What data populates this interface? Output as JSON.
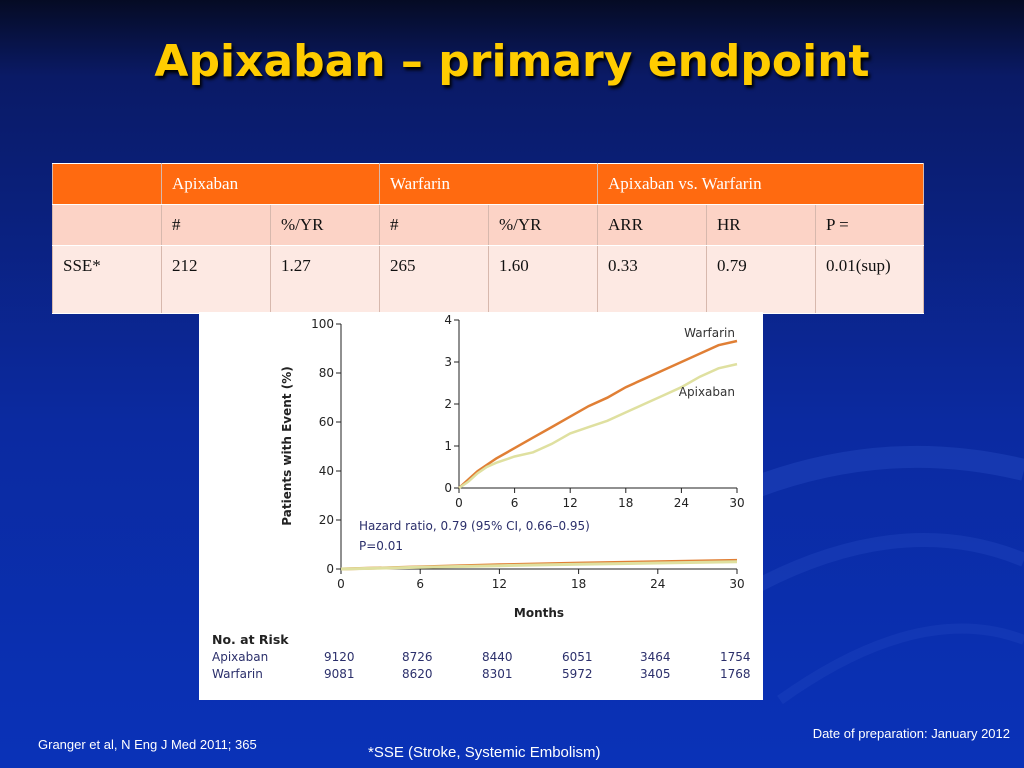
{
  "slide": {
    "title": "Apixaban – primary endpoint",
    "footer_left": "Granger et al, N Eng J Med 2011; 365",
    "footer_center": "*SSE (Stroke, Systemic Embolism)",
    "footer_right": "Date of preparation: January 2012"
  },
  "table": {
    "header_row": [
      "",
      "Apixaban",
      "Warfarin",
      "Apixaban vs. Warfarin"
    ],
    "subheader_row": [
      "",
      "#",
      "%/YR",
      "#",
      "%/YR",
      "ARR",
      "HR",
      "P ="
    ],
    "rows": [
      [
        "SSE*",
        "212",
        "1.27",
        "265",
        "1.60",
        "0.33",
        "0.79",
        "0.01(sup)"
      ]
    ]
  },
  "chart_data": [
    {
      "type": "line",
      "panel": "main",
      "ylabel": "Patients with Event (%)",
      "xlabel": "Months",
      "xlim": [
        0,
        30
      ],
      "ylim": [
        0,
        100
      ],
      "xticks": [
        "0",
        "6",
        "12",
        "18",
        "24",
        "30"
      ],
      "yticks": [
        "0",
        "20",
        "40",
        "60",
        "80",
        "100"
      ],
      "annotations": [
        "Hazard ratio, 0.79 (95% CI, 0.66–0.95)",
        "P=0.01"
      ],
      "series": [
        {
          "name": "Warfarin",
          "color": "#e07f35",
          "x": [
            0,
            6,
            12,
            18,
            24,
            30
          ],
          "y": [
            0,
            0.85,
            1.7,
            2.4,
            3.0,
            3.5
          ]
        },
        {
          "name": "Apixaban",
          "color": "#dfe0a0",
          "x": [
            0,
            6,
            12,
            18,
            24,
            30
          ],
          "y": [
            0,
            0.7,
            1.35,
            1.9,
            2.45,
            2.95
          ]
        }
      ]
    },
    {
      "type": "line",
      "panel": "inset",
      "xlim": [
        0,
        30
      ],
      "ylim": [
        0,
        4
      ],
      "xticks": [
        "0",
        "6",
        "12",
        "18",
        "24",
        "30"
      ],
      "yticks": [
        "0",
        "1",
        "2",
        "3",
        "4"
      ],
      "series": [
        {
          "name": "Warfarin",
          "color": "#e07f35",
          "x": [
            0,
            1,
            2,
            3,
            4,
            6,
            8,
            10,
            12,
            14,
            16,
            18,
            20,
            22,
            24,
            26,
            28,
            30
          ],
          "y": [
            0,
            0.2,
            0.4,
            0.55,
            0.7,
            0.95,
            1.2,
            1.45,
            1.7,
            1.95,
            2.15,
            2.4,
            2.6,
            2.8,
            3.0,
            3.2,
            3.4,
            3.5
          ]
        },
        {
          "name": "Apixaban",
          "color": "#dfe0a0",
          "x": [
            0,
            1,
            2,
            3,
            4,
            6,
            8,
            10,
            12,
            14,
            16,
            18,
            20,
            22,
            24,
            26,
            28,
            30
          ],
          "y": [
            0,
            0.15,
            0.35,
            0.5,
            0.6,
            0.75,
            0.85,
            1.05,
            1.3,
            1.45,
            1.6,
            1.8,
            2.0,
            2.2,
            2.4,
            2.65,
            2.85,
            2.95
          ]
        }
      ]
    }
  ],
  "risk_table": {
    "title": "No. at Risk",
    "rows": [
      {
        "label": "Apixaban",
        "values": [
          "9120",
          "8726",
          "8440",
          "6051",
          "3464",
          "1754"
        ]
      },
      {
        "label": "Warfarin",
        "values": [
          "9081",
          "8620",
          "8301",
          "5972",
          "3405",
          "1768"
        ]
      }
    ]
  }
}
